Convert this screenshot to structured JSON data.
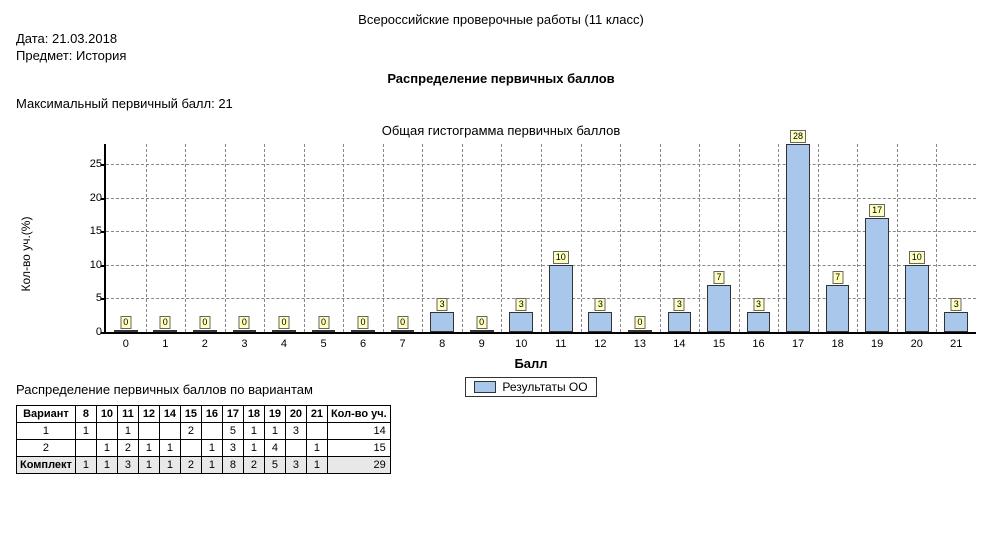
{
  "header": {
    "main_title": "Всероссийские проверочные работы (11 класс)",
    "date_label": "Дата: 21.03.2018",
    "subject_label": "Предмет: История",
    "distribution_title": "Распределение первичных баллов",
    "max_score_label": "Максимальный первичный балл: 21"
  },
  "chart": {
    "type": "bar",
    "title": "Общая гистограмма первичных баллов",
    "ylabel": "Кол-во уч.(%)",
    "xlabel": "Балл",
    "categories": [
      "0",
      "1",
      "2",
      "3",
      "4",
      "5",
      "6",
      "7",
      "8",
      "9",
      "10",
      "11",
      "12",
      "13",
      "14",
      "15",
      "16",
      "17",
      "18",
      "19",
      "20",
      "21"
    ],
    "values": [
      0,
      0,
      0,
      0,
      0,
      0,
      0,
      0,
      3,
      0,
      3,
      10,
      3,
      0,
      3,
      7,
      3,
      28,
      7,
      17,
      10,
      3
    ],
    "labels": [
      "0",
      "0",
      "0",
      "0",
      "0",
      "0",
      "0",
      "0",
      "3",
      "0",
      "3",
      "10",
      "3",
      "0",
      "3",
      "7",
      "3",
      "28",
      "7",
      "17",
      "10",
      "3"
    ],
    "ylim_max": 28,
    "yticks": [
      0,
      5,
      10,
      15,
      20,
      25
    ],
    "bar_color": "#a9c7ea",
    "bar_border": "#333333",
    "label_bg": "#ffffbf",
    "grid_color": "#888888",
    "legend_label": "Результаты ОО"
  },
  "variants_section": {
    "title": "Распределение первичных баллов по вариантам",
    "col_variant": "Вариант",
    "col_count": "Кол-во уч.",
    "score_cols": [
      "8",
      "10",
      "11",
      "12",
      "14",
      "15",
      "16",
      "17",
      "18",
      "19",
      "20",
      "21"
    ],
    "rows": [
      {
        "name": "1",
        "cells": [
          "1",
          "",
          "1",
          "",
          "",
          "2",
          "",
          "5",
          "1",
          "1",
          "3",
          ""
        ],
        "count": "14"
      },
      {
        "name": "2",
        "cells": [
          "",
          "1",
          "2",
          "1",
          "1",
          "",
          "1",
          "3",
          "1",
          "4",
          "",
          "1"
        ],
        "count": "15"
      }
    ],
    "total_row": {
      "name": "Комплект",
      "cells": [
        "1",
        "1",
        "3",
        "1",
        "1",
        "2",
        "1",
        "8",
        "2",
        "5",
        "3",
        "1"
      ],
      "count": "29"
    }
  }
}
